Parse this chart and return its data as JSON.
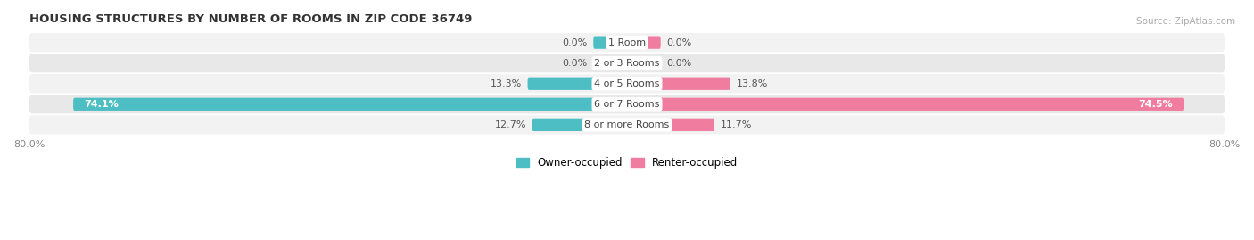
{
  "title": "HOUSING STRUCTURES BY NUMBER OF ROOMS IN ZIP CODE 36749",
  "source": "Source: ZipAtlas.com",
  "categories": [
    "1 Room",
    "2 or 3 Rooms",
    "4 or 5 Rooms",
    "6 or 7 Rooms",
    "8 or more Rooms"
  ],
  "owner_values": [
    0.0,
    0.0,
    13.3,
    74.1,
    12.7
  ],
  "renter_values": [
    0.0,
    0.0,
    13.8,
    74.5,
    11.7
  ],
  "owner_color": "#4dbfc4",
  "renter_color": "#f07da0",
  "owner_color_light": "#7dd4d8",
  "renter_color_light": "#f5a8c0",
  "row_bg_odd": "#f2f2f2",
  "row_bg_even": "#e8e8e8",
  "max_value": 80.0,
  "bar_height": 0.62,
  "background_color": "#ffffff",
  "stub_value": 4.5,
  "label_inside_threshold": 15.0
}
